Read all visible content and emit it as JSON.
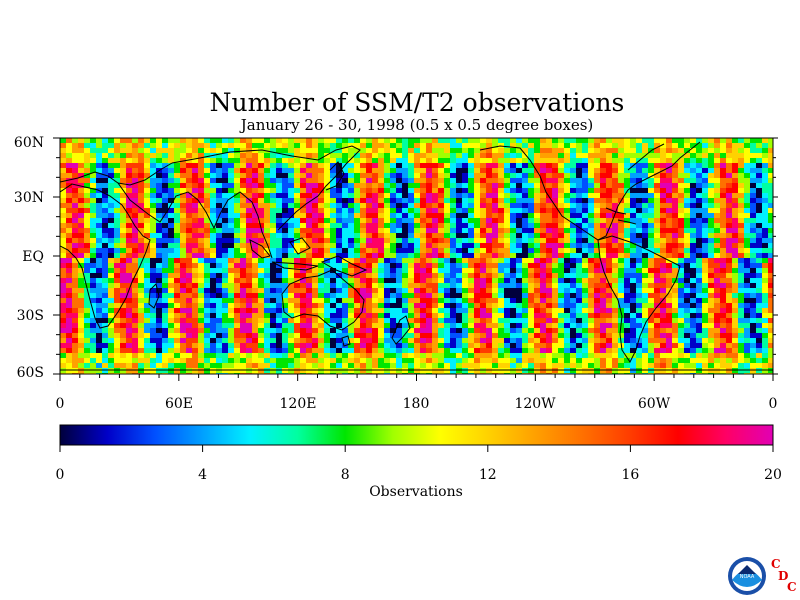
{
  "title": "Number of SSM/T2 observations",
  "subtitle": "January 26 - 30, 1998 (0.5 x 0.5 degree boxes)",
  "map": {
    "lat_labels": [
      "60N",
      "30N",
      "EQ",
      "30S",
      "60S"
    ],
    "lon_labels": [
      "0",
      "60E",
      "120E",
      "180",
      "120W",
      "60W",
      "0"
    ]
  },
  "colorbar": {
    "ticks": [
      "0",
      "4",
      "8",
      "12",
      "16",
      "20"
    ],
    "label": "Observations",
    "range": [
      0,
      20
    ],
    "colors": [
      "#00003c",
      "#0000c8",
      "#0050ff",
      "#00a0ff",
      "#00f0ff",
      "#00ffa0",
      "#00e600",
      "#a0ff00",
      "#ffff00",
      "#ffd200",
      "#ffa000",
      "#ff7000",
      "#ff3c00",
      "#ff0000",
      "#ff0064",
      "#e100b4"
    ]
  },
  "logo": {
    "org": "NOAA",
    "letters": [
      "C",
      "D",
      "C"
    ]
  },
  "colors": {
    "land_outline": "#000000",
    "background": "#ffffff"
  }
}
